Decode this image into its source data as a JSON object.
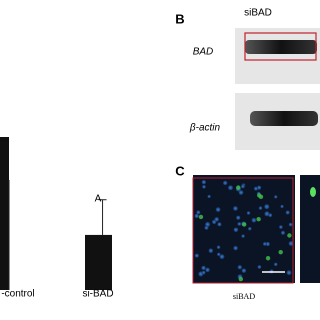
{
  "chart_data": {
    "type": "bar",
    "categories": [
      "-control",
      "si-BAD"
    ],
    "values": [
      100,
      36
    ],
    "errors": [
      null,
      23
    ],
    "annotation": "A",
    "color": "#111111",
    "ylim": [
      0,
      100
    ]
  },
  "panel_b": {
    "label": "B",
    "column_label": "siBAD",
    "rows": [
      "BAD",
      "β-actin"
    ]
  },
  "panel_c": {
    "label": "C",
    "image_label": "siBAD"
  }
}
